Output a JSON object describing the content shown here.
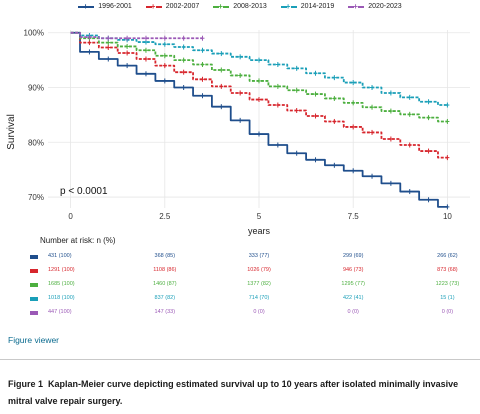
{
  "chart_data": {
    "type": "line",
    "title": "",
    "xlabel": "years",
    "ylabel": "Survival",
    "xlim": [
      0,
      10
    ],
    "ylim": [
      0.68,
      1.005
    ],
    "x_ticks": [
      0,
      2.5,
      5,
      7.5,
      10
    ],
    "x_tick_labels": [
      "0",
      "2.5",
      "5",
      "7.5",
      "10"
    ],
    "y_ticks": [
      0.7,
      0.8,
      0.9,
      1.0
    ],
    "y_tick_labels": [
      "70%",
      "80%",
      "90%",
      "100%"
    ],
    "grid": true,
    "legend_position": "top",
    "annotation": "p < 0.0001",
    "series": [
      {
        "name": "1996-2001",
        "color": "#1f4e8c",
        "dashed": false,
        "x": [
          0,
          0.5,
          1,
          1.5,
          2,
          2.5,
          3,
          3.5,
          4,
          4.5,
          5,
          5.5,
          6,
          6.5,
          7,
          7.5,
          8,
          8.5,
          9,
          9.5,
          10
        ],
        "y": [
          1.0,
          0.965,
          0.952,
          0.94,
          0.925,
          0.912,
          0.9,
          0.885,
          0.865,
          0.84,
          0.815,
          0.795,
          0.78,
          0.768,
          0.758,
          0.748,
          0.738,
          0.725,
          0.71,
          0.695,
          0.682
        ]
      },
      {
        "name": "2002-2007",
        "color": "#d7262d",
        "dashed": true,
        "x": [
          0,
          0.5,
          1,
          1.5,
          2,
          2.5,
          3,
          3.5,
          4,
          4.5,
          5,
          5.5,
          6,
          6.5,
          7,
          7.5,
          8,
          8.5,
          9,
          9.5,
          10
        ],
        "y": [
          1.0,
          0.982,
          0.973,
          0.963,
          0.952,
          0.94,
          0.928,
          0.915,
          0.902,
          0.89,
          0.878,
          0.868,
          0.858,
          0.848,
          0.838,
          0.828,
          0.818,
          0.806,
          0.795,
          0.784,
          0.772
        ]
      },
      {
        "name": "2008-2013",
        "color": "#4caf3f",
        "dashed": true,
        "x": [
          0,
          0.5,
          1,
          1.5,
          2,
          2.5,
          3,
          3.5,
          4,
          4.5,
          5,
          5.5,
          6,
          6.5,
          7,
          7.5,
          8,
          8.5,
          9,
          9.5,
          10
        ],
        "y": [
          1.0,
          0.99,
          0.982,
          0.975,
          0.968,
          0.958,
          0.95,
          0.942,
          0.932,
          0.922,
          0.912,
          0.902,
          0.895,
          0.888,
          0.88,
          0.872,
          0.864,
          0.857,
          0.851,
          0.845,
          0.838
        ]
      },
      {
        "name": "2014-2019",
        "color": "#1a9fb8",
        "dashed": true,
        "x": [
          0,
          0.5,
          1,
          1.5,
          2,
          2.5,
          3,
          3.5,
          4,
          4.5,
          5,
          5.5,
          6,
          6.5,
          7,
          7.5,
          8,
          8.5,
          9,
          9.5,
          10
        ],
        "y": [
          1.0,
          0.995,
          0.99,
          0.987,
          0.983,
          0.979,
          0.974,
          0.968,
          0.962,
          0.956,
          0.95,
          0.942,
          0.935,
          0.926,
          0.918,
          0.909,
          0.9,
          0.89,
          0.882,
          0.874,
          0.868
        ]
      },
      {
        "name": "2020-2023",
        "color": "#9b59b6",
        "dashed": true,
        "x": [
          0,
          0.5,
          1,
          1.5,
          2,
          2.5,
          3,
          3.5
        ],
        "y": [
          1.0,
          0.992,
          0.99,
          0.99,
          0.99,
          0.99,
          0.99,
          0.99
        ]
      }
    ]
  },
  "risk_table": {
    "title": "Number at risk: n (%)",
    "rows": [
      {
        "color": "#1f4e8c",
        "cells": [
          "431 (100)",
          "368 (85)",
          "333 (77)",
          "299 (69)",
          "266 (62)"
        ]
      },
      {
        "color": "#d7262d",
        "cells": [
          "1291 (100)",
          "1108 (86)",
          "1026 (79)",
          "946 (73)",
          "873 (68)"
        ]
      },
      {
        "color": "#4caf3f",
        "cells": [
          "1685 (100)",
          "1460 (87)",
          "1377 (82)",
          "1295 (77)",
          "1223 (73)"
        ]
      },
      {
        "color": "#1a9fb8",
        "cells": [
          "1018 (100)",
          "837 (82)",
          "714 (70)",
          "422 (41)",
          "15 (1)"
        ]
      },
      {
        "color": "#9b59b6",
        "cells": [
          "447 (100)",
          "147 (33)",
          "0 (0)",
          "0 (0)",
          "0 (0)"
        ]
      }
    ]
  },
  "figure_viewer": "Figure viewer",
  "caption": {
    "label": "Figure 1",
    "text": "Kaplan-Meier curve depicting estimated survival up to 10 years after isolated minimally invasive mitral valve repair surgery."
  }
}
